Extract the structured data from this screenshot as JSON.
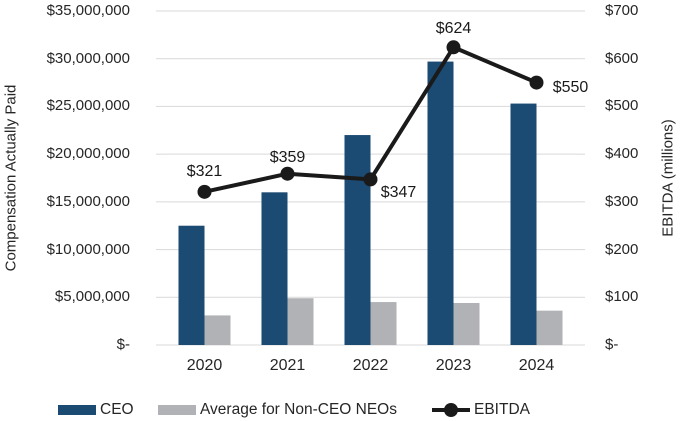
{
  "chart_data": {
    "type": "combo-bar-line",
    "categories": [
      "2020",
      "2021",
      "2022",
      "2023",
      "2024"
    ],
    "series": [
      {
        "name": "CEO",
        "type": "bar",
        "axis": "left",
        "color": "#1b4a72",
        "values": [
          12500000,
          16000000,
          22000000,
          29700000,
          25300000
        ]
      },
      {
        "name": "Average for Non-CEO NEOs",
        "type": "bar",
        "axis": "left",
        "color": "#b0b2b5",
        "values": [
          3100000,
          4900000,
          4500000,
          4400000,
          3600000
        ]
      },
      {
        "name": "EBITDA",
        "type": "line",
        "axis": "right",
        "color": "#1a1a1a",
        "values": [
          321,
          359,
          347,
          624,
          550
        ],
        "point_labels": [
          "$321",
          "$359",
          "$347",
          "$624",
          "$550"
        ]
      }
    ],
    "left_axis": {
      "title": "Compensation Actually Paid",
      "min": 0,
      "max": 35000000,
      "tick_step": 5000000,
      "tick_labels": [
        "$-",
        "$5,000,000",
        "$10,000,000",
        "$15,000,000",
        "$20,000,000",
        "$25,000,000",
        "$30,000,000",
        "$35,000,000"
      ]
    },
    "right_axis": {
      "title": "EBITDA (millions)",
      "min": 0,
      "max": 700,
      "tick_step": 100,
      "tick_labels": [
        "$-",
        "$100",
        "$200",
        "$300",
        "$400",
        "$500",
        "$600",
        "$700"
      ]
    },
    "legend": [
      {
        "label": "CEO",
        "swatch": "bar",
        "color": "#1b4a72"
      },
      {
        "label": "Average for Non-CEO NEOs",
        "swatch": "bar",
        "color": "#b0b2b5"
      },
      {
        "label": "EBITDA",
        "swatch": "line",
        "color": "#1a1a1a"
      }
    ],
    "grid_on": true,
    "grid_color": "#d9d9d9",
    "text_color": "#262626",
    "background": "#ffffff",
    "legend_position": "bottom"
  }
}
